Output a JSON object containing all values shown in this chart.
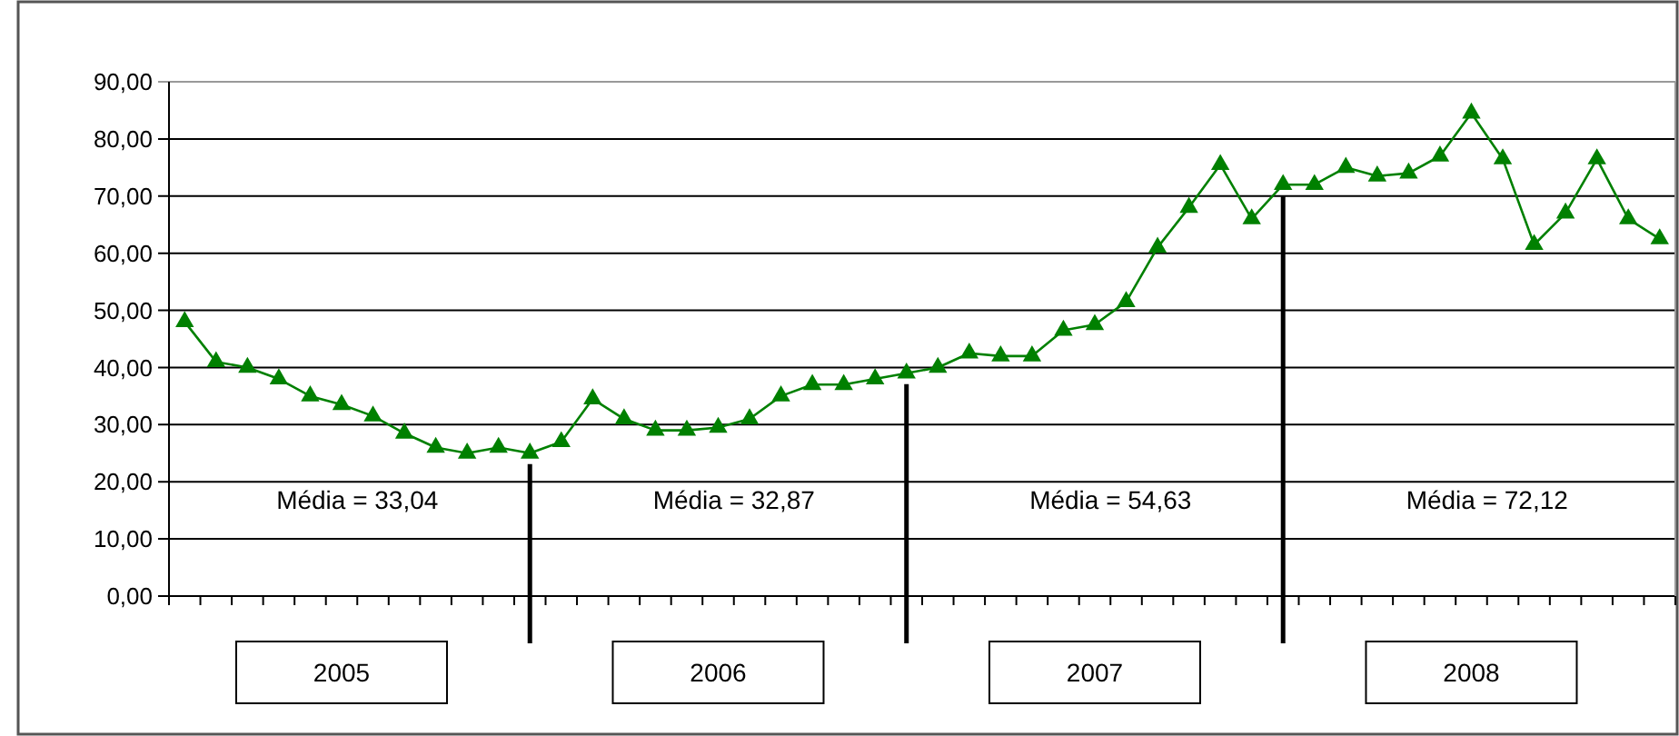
{
  "chart_data": {
    "type": "line",
    "categories": [
      null,
      null,
      null,
      null,
      null,
      "2005",
      null,
      null,
      null,
      null,
      null,
      null,
      null,
      null,
      null,
      null,
      null,
      "2006",
      null,
      null,
      null,
      null,
      null,
      null,
      null,
      null,
      null,
      null,
      null,
      "2007",
      null,
      null,
      null,
      null,
      null,
      null,
      null,
      null,
      null,
      null,
      null,
      "2008",
      null,
      null,
      null,
      null,
      null,
      null
    ],
    "series": [
      {
        "color": "#008000",
        "values": [
          48,
          41,
          40,
          38,
          35,
          33.5,
          31.5,
          28.5,
          26,
          25,
          26,
          25,
          27,
          34.5,
          31,
          29,
          29,
          29.5,
          31,
          35,
          37,
          37,
          38,
          39,
          40,
          42.5,
          42,
          42,
          46.5,
          47.5,
          51.5,
          61,
          68,
          75.5,
          66,
          72,
          72,
          75,
          73.5,
          74,
          77,
          84.5,
          76.5,
          61.5,
          67,
          76.5,
          66,
          62.5
        ]
      }
    ],
    "ylim": [
      0,
      90
    ],
    "yticks": [
      {
        "value": 0,
        "label": "0,00"
      },
      {
        "value": 10,
        "label": "10,00"
      },
      {
        "value": 20,
        "label": "20,00"
      },
      {
        "value": 30,
        "label": "30,00"
      },
      {
        "value": 40,
        "label": "40,00"
      },
      {
        "value": 50,
        "label": "50,00"
      },
      {
        "value": 60,
        "label": "60,00"
      },
      {
        "value": 70,
        "label": "70,00"
      },
      {
        "value": 80,
        "label": "80,00"
      },
      {
        "value": 90,
        "label": "90,00"
      }
    ],
    "grid": "y",
    "marker": "triangle",
    "line_style": "solid",
    "annotations": [
      "Média = 33,04",
      "Média = 32,87",
      "Média = 54,63",
      "Média = 72,12"
    ]
  }
}
